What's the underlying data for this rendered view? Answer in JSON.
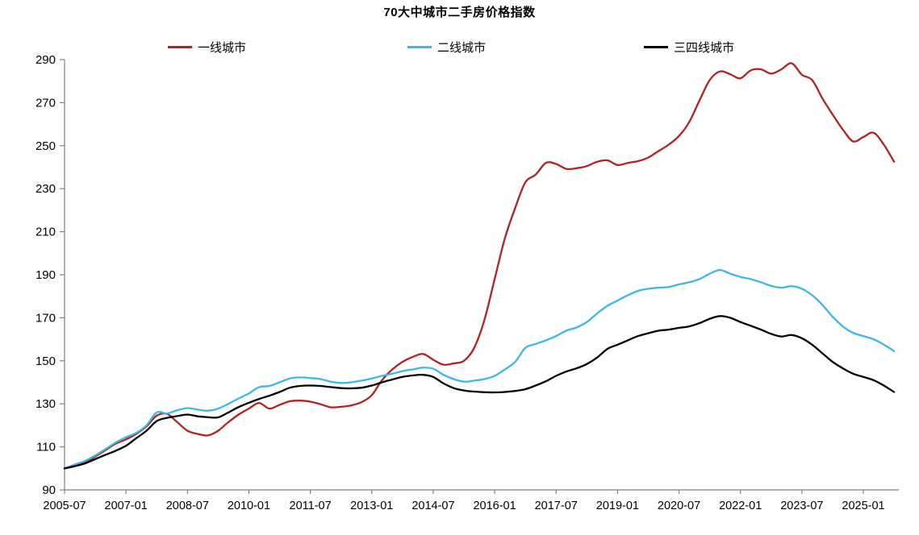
{
  "title": "70大中城市二手房价格指数",
  "legend": [
    {
      "label": "一线城市",
      "color": "#B02225"
    },
    {
      "label": "二线城市",
      "color": "#3FB6E3"
    },
    {
      "label": "三四线城市",
      "color": "#000000"
    }
  ],
  "axis_color": "#808080",
  "chart_data": {
    "type": "line",
    "title": "70大中城市二手房价格指数",
    "xlabel": "",
    "ylabel": "",
    "ylim": [
      90,
      290
    ],
    "y_ticks": [
      90,
      110,
      130,
      150,
      170,
      190,
      210,
      230,
      250,
      270,
      290
    ],
    "x_tick_labels": [
      "2005-07",
      "2007-01",
      "2008-07",
      "2010-01",
      "2011-07",
      "2013-01",
      "2014-07",
      "2016-01",
      "2017-07",
      "2019-01",
      "2020-07",
      "2022-01",
      "2023-07",
      "2025-01"
    ],
    "grid": false,
    "legend_position": "top",
    "categories": [
      "2005-07",
      "2005-10",
      "2006-01",
      "2006-04",
      "2006-07",
      "2006-10",
      "2007-01",
      "2007-04",
      "2007-07",
      "2007-10",
      "2008-01",
      "2008-04",
      "2008-07",
      "2008-10",
      "2009-01",
      "2009-04",
      "2009-07",
      "2009-10",
      "2010-01",
      "2010-04",
      "2010-07",
      "2010-10",
      "2011-01",
      "2011-04",
      "2011-07",
      "2011-10",
      "2012-01",
      "2012-04",
      "2012-07",
      "2012-10",
      "2013-01",
      "2013-04",
      "2013-07",
      "2013-10",
      "2014-01",
      "2014-04",
      "2014-07",
      "2014-10",
      "2015-01",
      "2015-04",
      "2015-07",
      "2015-10",
      "2016-01",
      "2016-04",
      "2016-07",
      "2016-10",
      "2017-01",
      "2017-04",
      "2017-07",
      "2017-10",
      "2018-01",
      "2018-04",
      "2018-07",
      "2018-10",
      "2019-01",
      "2019-04",
      "2019-07",
      "2019-10",
      "2020-01",
      "2020-04",
      "2020-07",
      "2020-10",
      "2021-01",
      "2021-04",
      "2021-07",
      "2021-10",
      "2022-01",
      "2022-04",
      "2022-07",
      "2022-10",
      "2023-01",
      "2023-04",
      "2023-07",
      "2023-10",
      "2024-01",
      "2024-04",
      "2024-07",
      "2024-10",
      "2025-01",
      "2025-04",
      "2025-07",
      "2025-10"
    ],
    "series": [
      {
        "name": "一线城市",
        "color": "#B02225",
        "values": [
          100,
          101.5,
          103,
          105.5,
          108.5,
          111.5,
          113.5,
          116,
          119.5,
          124.5,
          125.3,
          121.5,
          117.5,
          116,
          115.3,
          117.5,
          121.5,
          125,
          127.8,
          130.4,
          127.8,
          129.5,
          131.2,
          131.5,
          131,
          129.8,
          128.4,
          128.6,
          129.3,
          130.8,
          134,
          141,
          146,
          149.5,
          151.8,
          153.2,
          150.5,
          148.2,
          148.8,
          150,
          156,
          169,
          188,
          207,
          221,
          233,
          236.5,
          242,
          241.5,
          239.2,
          239.5,
          240.5,
          242.5,
          243.2,
          241,
          242,
          242.8,
          244.5,
          247.5,
          250.5,
          254.5,
          261,
          271,
          280.5,
          284.5,
          283.2,
          281.3,
          285,
          285.5,
          283.5,
          285.5,
          288.3,
          283,
          280.5,
          272,
          264.5,
          257.5,
          252,
          254,
          256,
          250.5,
          242.5
        ]
      },
      {
        "name": "二线城市",
        "color": "#3FB6E3",
        "values": [
          100,
          101.8,
          103.5,
          106,
          109,
          112,
          114.5,
          116.5,
          120,
          126,
          125.5,
          127,
          128,
          127.3,
          126.8,
          127.8,
          130,
          132.5,
          134.8,
          137.8,
          138.3,
          140,
          141.8,
          142.3,
          142,
          141.5,
          140.3,
          139.7,
          140,
          140.8,
          141.8,
          143,
          144,
          145.2,
          146,
          146.8,
          146.3,
          143.5,
          141.5,
          140.3,
          140.8,
          141.5,
          143,
          146,
          149.5,
          156,
          157.8,
          159.5,
          161.5,
          164,
          165.5,
          168,
          172,
          175.5,
          178,
          180.5,
          182.5,
          183.5,
          184,
          184.3,
          185.5,
          186.5,
          188,
          190.5,
          192.2,
          190.5,
          189,
          188,
          186.5,
          184.8,
          184,
          184.7,
          183.5,
          180.5,
          176,
          170.5,
          166,
          163,
          161.5,
          160,
          157.5,
          154.5
        ]
      },
      {
        "name": "三四线城市",
        "color": "#000000",
        "values": [
          100,
          101,
          102.3,
          104.3,
          106.3,
          108.2,
          110.5,
          114,
          117.5,
          122,
          123.5,
          124.3,
          125,
          124.2,
          123.8,
          123.7,
          126,
          128.5,
          130.5,
          132.3,
          133.8,
          135.5,
          137.5,
          138.3,
          138.5,
          138.3,
          137.8,
          137.3,
          137.2,
          137.5,
          138.5,
          140,
          141.3,
          142.5,
          143.2,
          143.5,
          142.5,
          139.5,
          137.3,
          136.2,
          135.7,
          135.4,
          135.3,
          135.5,
          136,
          136.8,
          138.5,
          140.5,
          143,
          145,
          146.5,
          148.5,
          151.5,
          155.5,
          157.5,
          159.5,
          161.5,
          162.8,
          164,
          164.5,
          165.3,
          166,
          167.5,
          169.5,
          170.8,
          170,
          168,
          166.3,
          164.5,
          162.5,
          161.3,
          162,
          160.5,
          157.5,
          153.5,
          149.5,
          146.5,
          144,
          142.5,
          141,
          138.5,
          135.5
        ]
      }
    ]
  }
}
